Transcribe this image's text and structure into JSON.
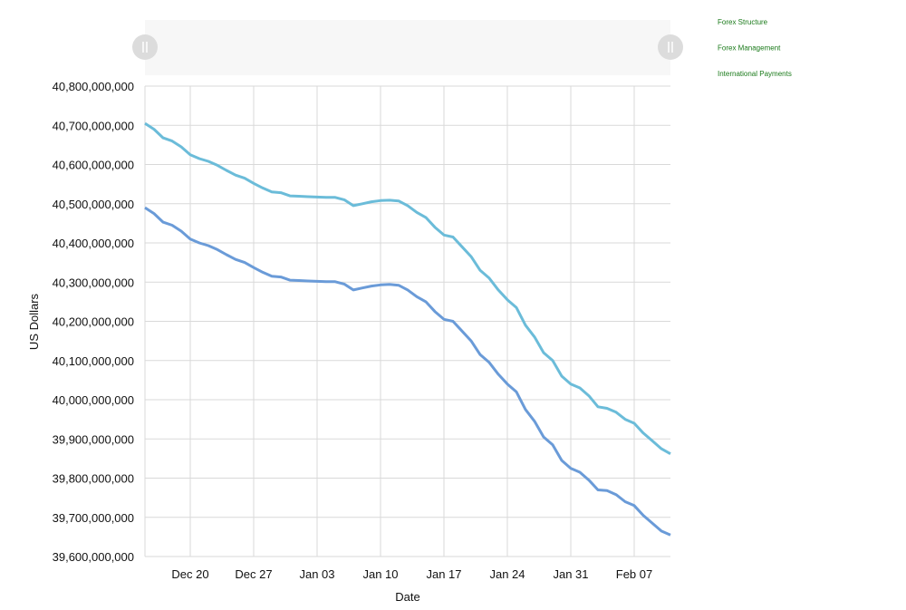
{
  "chart_data": {
    "type": "line",
    "x_label": "Date",
    "y_label": "US Dollars",
    "x": [
      "Dec 15",
      "Dec 16",
      "Dec 17",
      "Dec 18",
      "Dec 19",
      "Dec 20",
      "Dec 21",
      "Dec 22",
      "Dec 23",
      "Dec 24",
      "Dec 25",
      "Dec 26",
      "Dec 27",
      "Dec 28",
      "Dec 29",
      "Dec 30",
      "Dec 31",
      "Jan 01",
      "Jan 02",
      "Jan 03",
      "Jan 04",
      "Jan 05",
      "Jan 06",
      "Jan 07",
      "Jan 08",
      "Jan 09",
      "Jan 10",
      "Jan 11",
      "Jan 12",
      "Jan 13",
      "Jan 14",
      "Jan 15",
      "Jan 16",
      "Jan 17",
      "Jan 18",
      "Jan 19",
      "Jan 20",
      "Jan 21",
      "Jan 22",
      "Jan 23",
      "Jan 24",
      "Jan 25",
      "Jan 26",
      "Jan 27",
      "Jan 28",
      "Jan 29",
      "Jan 30",
      "Jan 31",
      "Feb 01",
      "Feb 02",
      "Feb 03",
      "Feb 04",
      "Feb 05",
      "Feb 06",
      "Feb 07",
      "Feb 08",
      "Feb 09",
      "Feb 10",
      "Feb 11"
    ],
    "xticks": [
      "Dec 20",
      "Dec 27",
      "Jan 03",
      "Jan 10",
      "Jan 17",
      "Jan 24",
      "Jan 31",
      "Feb 07"
    ],
    "ylim": [
      39600000000,
      40800000000
    ],
    "yticks": [
      {
        "value": 39600000000,
        "label": "39,600,000,000"
      },
      {
        "value": 39700000000,
        "label": "39,700,000,000"
      },
      {
        "value": 39800000000,
        "label": "39,800,000,000"
      },
      {
        "value": 39900000000,
        "label": "39,900,000,000"
      },
      {
        "value": 40000000000,
        "label": "40,000,000,000"
      },
      {
        "value": 40100000000,
        "label": "40,100,000,000"
      },
      {
        "value": 40200000000,
        "label": "40,200,000,000"
      },
      {
        "value": 40300000000,
        "label": "40,300,000,000"
      },
      {
        "value": 40400000000,
        "label": "40,400,000,000"
      },
      {
        "value": 40500000000,
        "label": "40,500,000,000"
      },
      {
        "value": 40600000000,
        "label": "40,600,000,000"
      },
      {
        "value": 40700000000,
        "label": "40,700,000,000"
      },
      {
        "value": 40800000000,
        "label": "40,800,000,000"
      }
    ],
    "grid": true,
    "legend_color": "#1a7a1a",
    "series": [
      {
        "name": "Forex Structure",
        "color": "#6bbcd9",
        "values": [
          40705000000,
          40690000000,
          40668000000,
          40660000000,
          40645000000,
          40625000000,
          40615000000,
          40608000000,
          40598000000,
          40585000000,
          40573000000,
          40565000000,
          40552000000,
          40540000000,
          40530000000,
          40528000000,
          40520000000,
          40519000000,
          40518000000,
          40517000000,
          40516000000,
          40516000000,
          40510000000,
          40495000000,
          40500000000,
          40505000000,
          40508000000,
          40509000000,
          40507000000,
          40495000000,
          40478000000,
          40465000000,
          40440000000,
          40420000000,
          40415000000,
          40390000000,
          40365000000,
          40330000000,
          40310000000,
          40280000000,
          40255000000,
          40235000000,
          40190000000,
          40160000000,
          40120000000,
          40100000000,
          40060000000,
          40040000000,
          40030000000,
          40010000000,
          39982000000,
          39978000000,
          39968000000,
          39950000000,
          39940000000,
          39915000000,
          39895000000,
          39875000000,
          39862000000
        ]
      },
      {
        "name": "Forex Management",
        "color": "#6a9bd8",
        "values": [
          40490000000,
          40475000000,
          40453000000,
          40445000000,
          40430000000,
          40410000000,
          40400000000,
          40393000000,
          40383000000,
          40370000000,
          40358000000,
          40350000000,
          40337000000,
          40325000000,
          40315000000,
          40313000000,
          40305000000,
          40304000000,
          40303000000,
          40302000000,
          40301000000,
          40301000000,
          40295000000,
          40280000000,
          40285000000,
          40290000000,
          40293000000,
          40294000000,
          40292000000,
          40280000000,
          40263000000,
          40250000000,
          40225000000,
          40205000000,
          40200000000,
          40175000000,
          40150000000,
          40115000000,
          40095000000,
          40065000000,
          40040000000,
          40020000000,
          39975000000,
          39945000000,
          39905000000,
          39885000000,
          39845000000,
          39825000000,
          39815000000,
          39795000000,
          39770000000,
          39768000000,
          39758000000,
          39740000000,
          39730000000,
          39705000000,
          39685000000,
          39665000000,
          39655000000
        ]
      },
      {
        "name": "International Payments",
        "color": "#1a7a1a",
        "values": [
          null,
          null,
          null,
          null,
          null,
          null,
          null,
          null,
          null,
          null,
          null,
          null,
          null,
          null,
          null,
          null,
          null,
          null,
          null,
          null,
          null,
          null,
          null,
          null,
          null,
          null,
          null,
          null,
          null,
          null,
          null,
          null,
          null,
          null,
          null,
          null,
          null,
          null,
          null,
          null,
          null,
          null,
          null,
          null,
          null,
          null,
          null,
          null,
          null,
          null,
          null,
          null,
          null,
          null,
          null,
          null,
          null,
          null,
          null
        ]
      }
    ]
  }
}
